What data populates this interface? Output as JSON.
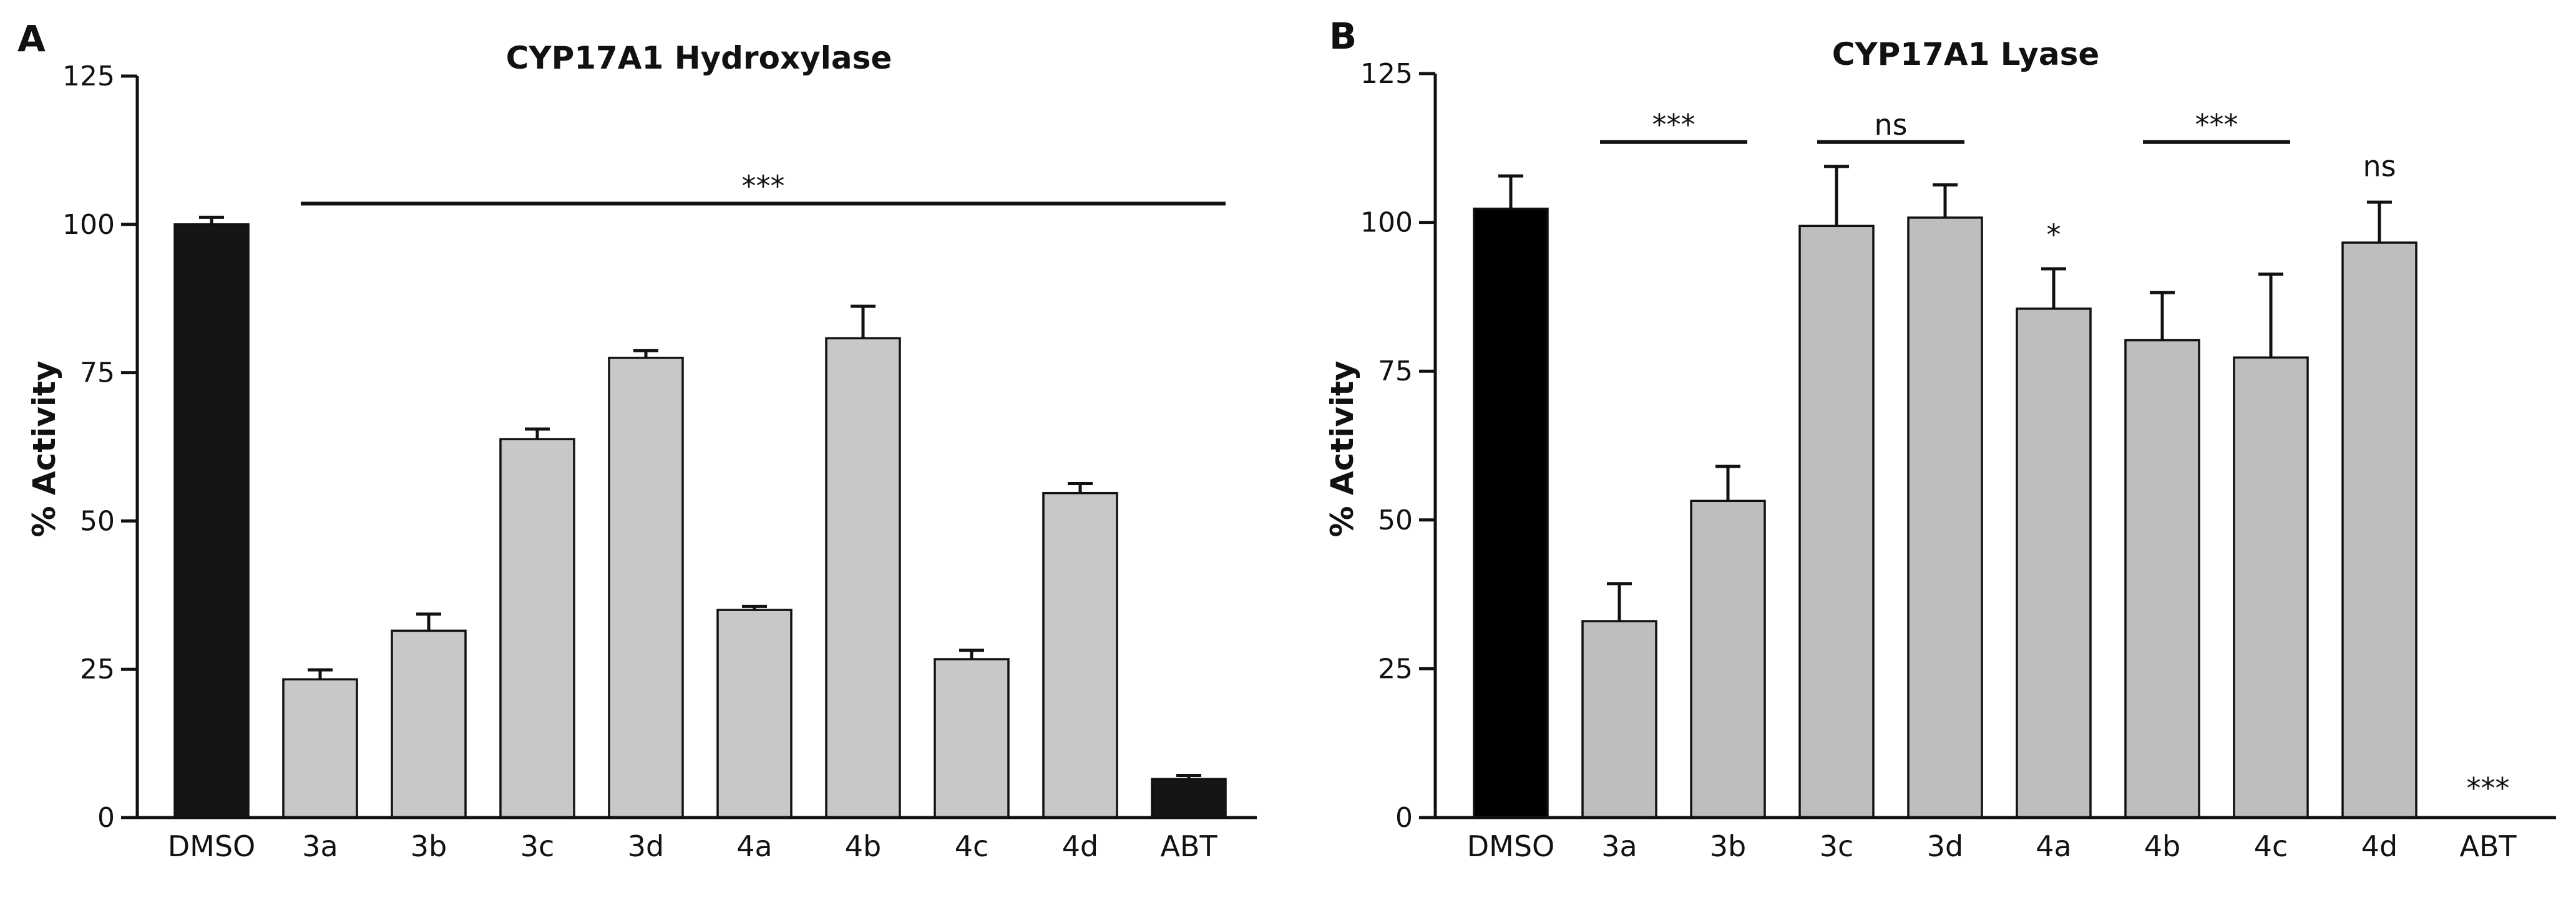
{
  "chart_data": [
    {
      "type": "bar",
      "panel": "A",
      "title": "CYP17A1 Hydroxylase",
      "xlabel": "",
      "ylabel": "% Activity",
      "ylim": [
        0,
        125
      ],
      "yticks": [
        0,
        25,
        50,
        75,
        100,
        125
      ],
      "categories": [
        "DMSO",
        "3a",
        "3b",
        "3c",
        "3d",
        "4a",
        "4b",
        "4c",
        "4d",
        "ABT"
      ],
      "values": [
        100,
        23.3,
        31.5,
        63.8,
        77.5,
        35.0,
        80.8,
        26.7,
        54.7,
        6.5
      ],
      "errors": [
        1.2,
        1.6,
        2.8,
        1.7,
        1.2,
        0.6,
        5.4,
        1.5,
        1.6,
        0.6
      ],
      "colors": [
        "#151515",
        "#c8c8c8",
        "#c8c8c8",
        "#c8c8c8",
        "#c8c8c8",
        "#c8c8c8",
        "#c8c8c8",
        "#c8c8c8",
        "#c8c8c8",
        "#151515"
      ],
      "annotations": [
        {
          "label": "***",
          "from": "3a",
          "to": "ABT",
          "y": 103.5
        }
      ]
    },
    {
      "type": "bar",
      "panel": "B",
      "title": "CYP17A1 Lyase",
      "xlabel": "",
      "ylabel": "% Activity",
      "ylim": [
        0,
        125
      ],
      "yticks": [
        0,
        25,
        50,
        75,
        100,
        125
      ],
      "categories": [
        "DMSO",
        "3a",
        "3b",
        "3c",
        "3d",
        "4a",
        "4b",
        "4c",
        "4d",
        "ABT"
      ],
      "values": [
        102.3,
        33.0,
        53.2,
        99.4,
        100.8,
        85.5,
        80.2,
        77.3,
        96.6,
        0
      ],
      "errors": [
        5.5,
        6.3,
        5.8,
        10.0,
        5.5,
        6.7,
        8.0,
        14.0,
        6.8,
        0
      ],
      "colors": [
        "#000000",
        "#bebebe",
        "#bebebe",
        "#bebebe",
        "#bebebe",
        "#bebebe",
        "#bebebe",
        "#bebebe",
        "#bebebe",
        "#000000"
      ],
      "annotations": [
        {
          "label": "***",
          "from": "3a",
          "to": "3b",
          "y": 113.5
        },
        {
          "label": "ns",
          "from": "3c",
          "to": "3d",
          "y": 113.5
        },
        {
          "label": "***",
          "from": "4b",
          "to": "4c",
          "y": 113.5
        },
        {
          "label": "*",
          "over": "4a",
          "y": 95
        },
        {
          "label": "ns",
          "over": "4d",
          "y": 106.5
        },
        {
          "label": "***",
          "over": "ABT",
          "y": 2
        }
      ]
    }
  ]
}
